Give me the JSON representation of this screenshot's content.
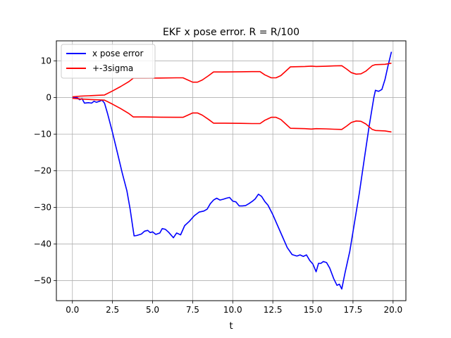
{
  "chart_data": {
    "type": "line",
    "title": "EKF x pose error. R = R/100",
    "xlabel": "t",
    "ylabel": "",
    "xlim": [
      -1.0,
      20.8
    ],
    "ylim": [
      -55.5,
      15.5
    ],
    "x_ticks": [
      0.0,
      2.5,
      5.0,
      7.5,
      10.0,
      12.5,
      15.0,
      17.5,
      20.0
    ],
    "x_tick_labels": [
      "0.0",
      "2.5",
      "5.0",
      "7.5",
      "10.0",
      "12.5",
      "15.0",
      "17.5",
      "20.0"
    ],
    "y_ticks": [
      10,
      0,
      -10,
      -20,
      -30,
      -40,
      -50
    ],
    "y_tick_labels": [
      "10",
      "0",
      "−10",
      "−20",
      "−30",
      "−40",
      "−50"
    ],
    "grid": true,
    "legend_position": "top-left",
    "series": [
      {
        "name": "x pose error",
        "color": "#0000ff",
        "points": [
          [
            0.0,
            0.0
          ],
          [
            0.3,
            0.0
          ],
          [
            0.45,
            -0.6
          ],
          [
            0.6,
            -0.3
          ],
          [
            0.75,
            -1.5
          ],
          [
            1.0,
            -1.4
          ],
          [
            1.2,
            -1.5
          ],
          [
            1.35,
            -1.0
          ],
          [
            1.5,
            -1.3
          ],
          [
            1.7,
            -1.0
          ],
          [
            1.85,
            -0.7
          ],
          [
            2.0,
            -1.5
          ],
          [
            2.2,
            -4.5
          ],
          [
            2.5,
            -9.5
          ],
          [
            2.8,
            -15.0
          ],
          [
            3.1,
            -20.5
          ],
          [
            3.4,
            -25.5
          ],
          [
            3.6,
            -30.5
          ],
          [
            3.75,
            -35.0
          ],
          [
            3.85,
            -37.8
          ],
          [
            4.0,
            -37.7
          ],
          [
            4.3,
            -37.3
          ],
          [
            4.5,
            -36.5
          ],
          [
            4.7,
            -36.3
          ],
          [
            4.85,
            -36.9
          ],
          [
            5.0,
            -36.7
          ],
          [
            5.2,
            -37.4
          ],
          [
            5.45,
            -37.0
          ],
          [
            5.6,
            -35.8
          ],
          [
            5.8,
            -36.0
          ],
          [
            6.0,
            -36.8
          ],
          [
            6.3,
            -38.3
          ],
          [
            6.5,
            -37.0
          ],
          [
            6.75,
            -37.5
          ],
          [
            7.0,
            -35.0
          ],
          [
            7.3,
            -33.8
          ],
          [
            7.6,
            -32.3
          ],
          [
            7.9,
            -31.3
          ],
          [
            8.2,
            -31.0
          ],
          [
            8.4,
            -30.5
          ],
          [
            8.6,
            -29.0
          ],
          [
            8.8,
            -28.0
          ],
          [
            9.0,
            -27.5
          ],
          [
            9.2,
            -28.0
          ],
          [
            9.4,
            -27.8
          ],
          [
            9.6,
            -27.5
          ],
          [
            9.8,
            -27.3
          ],
          [
            10.0,
            -28.3
          ],
          [
            10.2,
            -28.5
          ],
          [
            10.4,
            -29.6
          ],
          [
            10.6,
            -29.6
          ],
          [
            10.8,
            -29.5
          ],
          [
            11.0,
            -29.0
          ],
          [
            11.2,
            -28.4
          ],
          [
            11.4,
            -27.7
          ],
          [
            11.6,
            -26.4
          ],
          [
            11.8,
            -27.0
          ],
          [
            12.0,
            -28.4
          ],
          [
            12.2,
            -29.4
          ],
          [
            12.5,
            -32.0
          ],
          [
            12.8,
            -35.0
          ],
          [
            13.1,
            -38.0
          ],
          [
            13.4,
            -41.0
          ],
          [
            13.7,
            -42.9
          ],
          [
            14.0,
            -43.3
          ],
          [
            14.2,
            -43.0
          ],
          [
            14.4,
            -43.4
          ],
          [
            14.6,
            -43.0
          ],
          [
            14.8,
            -44.5
          ],
          [
            15.0,
            -45.5
          ],
          [
            15.2,
            -47.6
          ],
          [
            15.35,
            -45.3
          ],
          [
            15.5,
            -45.3
          ],
          [
            15.65,
            -44.8
          ],
          [
            15.85,
            -45.1
          ],
          [
            16.05,
            -46.6
          ],
          [
            16.3,
            -49.5
          ],
          [
            16.5,
            -51.3
          ],
          [
            16.65,
            -51.0
          ],
          [
            16.8,
            -52.3
          ],
          [
            17.0,
            -48.0
          ],
          [
            17.3,
            -42.0
          ],
          [
            17.6,
            -34.0
          ],
          [
            17.9,
            -26.0
          ],
          [
            18.2,
            -17.0
          ],
          [
            18.5,
            -8.0
          ],
          [
            18.8,
            0.0
          ],
          [
            18.9,
            2.0
          ],
          [
            19.1,
            1.7
          ],
          [
            19.3,
            2.2
          ],
          [
            19.5,
            5.0
          ],
          [
            19.7,
            9.0
          ],
          [
            19.9,
            12.5
          ]
        ]
      },
      {
        "name": "+-3sigma",
        "color": "#ff0000",
        "points": [
          [
            0.0,
            0.2
          ],
          [
            0.5,
            0.4
          ],
          [
            1.0,
            0.5
          ],
          [
            1.5,
            0.6
          ],
          [
            2.0,
            0.7
          ],
          [
            2.5,
            1.8
          ],
          [
            3.0,
            3.0
          ],
          [
            3.5,
            4.3
          ],
          [
            3.8,
            5.3
          ],
          [
            4.5,
            5.3
          ],
          [
            5.5,
            5.35
          ],
          [
            6.5,
            5.4
          ],
          [
            6.9,
            5.4
          ],
          [
            7.2,
            4.8
          ],
          [
            7.5,
            4.2
          ],
          [
            7.8,
            4.2
          ],
          [
            8.1,
            4.8
          ],
          [
            8.5,
            6.0
          ],
          [
            8.8,
            7.0
          ],
          [
            9.5,
            7.0
          ],
          [
            10.5,
            7.05
          ],
          [
            11.2,
            7.1
          ],
          [
            11.7,
            7.1
          ],
          [
            12.0,
            6.2
          ],
          [
            12.4,
            5.4
          ],
          [
            12.7,
            5.4
          ],
          [
            13.0,
            6.0
          ],
          [
            13.3,
            7.2
          ],
          [
            13.6,
            8.4
          ],
          [
            14.5,
            8.5
          ],
          [
            14.9,
            8.6
          ],
          [
            15.2,
            8.5
          ],
          [
            15.8,
            8.55
          ],
          [
            16.3,
            8.65
          ],
          [
            16.8,
            8.7
          ],
          [
            17.1,
            7.8
          ],
          [
            17.4,
            6.8
          ],
          [
            17.7,
            6.4
          ],
          [
            18.0,
            6.5
          ],
          [
            18.3,
            7.2
          ],
          [
            18.7,
            8.7
          ],
          [
            18.9,
            9.0
          ],
          [
            19.5,
            9.1
          ],
          [
            19.9,
            9.4
          ]
        ]
      },
      {
        "name": "",
        "color": "#ff0000",
        "points": [
          [
            0.0,
            -0.2
          ],
          [
            0.5,
            -0.4
          ],
          [
            1.0,
            -0.5
          ],
          [
            1.5,
            -0.6
          ],
          [
            2.0,
            -0.7
          ],
          [
            2.5,
            -1.8
          ],
          [
            3.0,
            -3.0
          ],
          [
            3.5,
            -4.3
          ],
          [
            3.8,
            -5.3
          ],
          [
            4.5,
            -5.3
          ],
          [
            5.5,
            -5.35
          ],
          [
            6.5,
            -5.4
          ],
          [
            6.9,
            -5.4
          ],
          [
            7.2,
            -4.8
          ],
          [
            7.5,
            -4.2
          ],
          [
            7.8,
            -4.2
          ],
          [
            8.1,
            -4.8
          ],
          [
            8.5,
            -6.0
          ],
          [
            8.8,
            -7.0
          ],
          [
            9.5,
            -7.0
          ],
          [
            10.5,
            -7.05
          ],
          [
            11.2,
            -7.1
          ],
          [
            11.7,
            -7.1
          ],
          [
            12.0,
            -6.2
          ],
          [
            12.4,
            -5.4
          ],
          [
            12.7,
            -5.4
          ],
          [
            13.0,
            -6.0
          ],
          [
            13.3,
            -7.2
          ],
          [
            13.6,
            -8.4
          ],
          [
            14.5,
            -8.5
          ],
          [
            14.9,
            -8.6
          ],
          [
            15.2,
            -8.5
          ],
          [
            15.8,
            -8.55
          ],
          [
            16.3,
            -8.65
          ],
          [
            16.8,
            -8.7
          ],
          [
            17.1,
            -7.8
          ],
          [
            17.4,
            -6.8
          ],
          [
            17.7,
            -6.4
          ],
          [
            18.0,
            -6.5
          ],
          [
            18.3,
            -7.2
          ],
          [
            18.7,
            -8.7
          ],
          [
            18.9,
            -9.0
          ],
          [
            19.5,
            -9.1
          ],
          [
            19.9,
            -9.4
          ]
        ]
      }
    ]
  }
}
